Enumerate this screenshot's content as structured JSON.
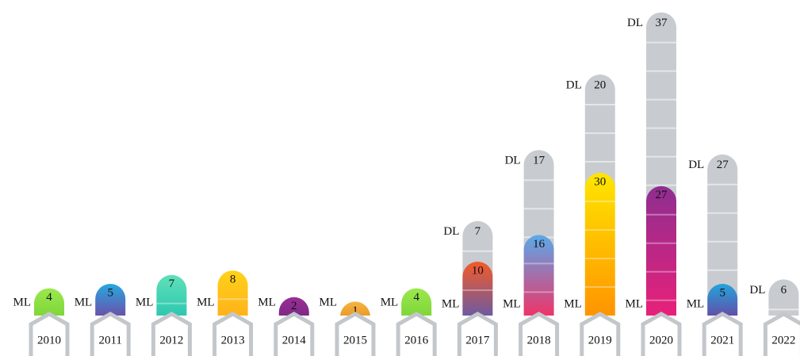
{
  "chart_data": {
    "type": "stacked-bar",
    "categories": [
      "2010",
      "2011",
      "2012",
      "2013",
      "2014",
      "2015",
      "2016",
      "2017",
      "2018",
      "2019",
      "2020",
      "2021",
      "2022"
    ],
    "series": [
      {
        "name": "ML",
        "values": [
          4,
          5,
          7,
          8,
          2,
          1,
          4,
          10,
          16,
          30,
          27,
          5,
          null
        ],
        "colors": [
          [
            "#9be84e",
            "#7fd63a"
          ],
          [
            "#26a8e0",
            "#6a52ac"
          ],
          [
            "#5fe0b8",
            "#2ec8b0"
          ],
          [
            "#ffd21a",
            "#ffb21a"
          ],
          [
            "#9a2e96",
            "#7e2a86"
          ],
          [
            "#f6b440",
            "#e89a2a"
          ],
          [
            "#9be84e",
            "#7fd63a"
          ],
          [
            "#f45a28",
            "#6e5aa0"
          ],
          [
            "#5aaaea",
            "#ee3468"
          ],
          [
            "#ffe600",
            "#ff9400"
          ],
          [
            "#8e2e90",
            "#e8207a"
          ],
          [
            "#22a4dc",
            "#6250aa"
          ],
          null
        ]
      },
      {
        "name": "DL",
        "color": "#c8ccd0",
        "values": [
          null,
          null,
          null,
          null,
          null,
          null,
          null,
          7,
          17,
          20,
          37,
          27,
          6
        ]
      }
    ]
  }
}
